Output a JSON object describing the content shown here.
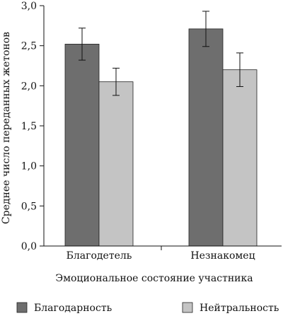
{
  "chart_data": {
    "type": "bar",
    "categories": [
      "Благодетель",
      "Незнакомец"
    ],
    "series": [
      {
        "name": "Благодарность",
        "values": [
          2.52,
          2.71
        ],
        "errors": [
          0.2,
          0.22
        ],
        "color": "#6e6e6e"
      },
      {
        "name": "Нейтральность",
        "values": [
          2.05,
          2.2
        ],
        "errors": [
          0.17,
          0.21
        ],
        "color": "#c4c4c4"
      }
    ],
    "title": "",
    "xlabel": "Эмоциональное состояние участника",
    "ylabel": "Среднее число переданных жетонов",
    "ylim": [
      0,
      3
    ],
    "yticks": [
      "0,0",
      "0,5",
      "1,0",
      "1,5",
      "2,0",
      "2,5",
      "3,0"
    ],
    "ytick_values": [
      0,
      0.5,
      1,
      1.5,
      2,
      2.5,
      3
    ],
    "grid": false,
    "legend_position": "bottom"
  }
}
